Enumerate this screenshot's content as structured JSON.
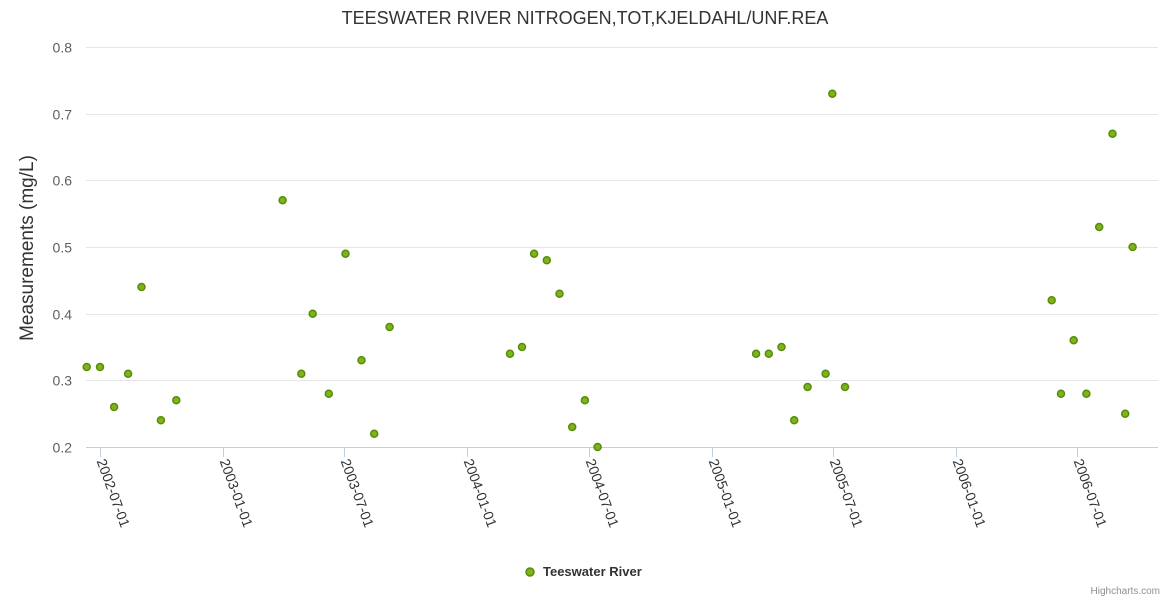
{
  "chart_data": {
    "type": "scatter",
    "title": "TEESWATER RIVER NITROGEN,TOT,KJELDAHL/UNF.REA",
    "xlabel": "",
    "ylabel": "Measurements (mg/L)",
    "ylim": [
      0.2,
      0.8
    ],
    "yticks": [
      "0.2",
      "0.3",
      "0.4",
      "0.5",
      "0.6",
      "0.7",
      "0.8"
    ],
    "xlim": [
      "2002-06-10",
      "2006-10-30"
    ],
    "xticks": [
      "2002-07-01",
      "2003-01-01",
      "2003-07-01",
      "2004-01-01",
      "2004-07-01",
      "2005-01-01",
      "2005-07-01",
      "2006-01-01",
      "2006-07-01"
    ],
    "grid": true,
    "legend_position": "bottom-center",
    "series": [
      {
        "name": "Teeswater River",
        "color": "#7cb518",
        "points": [
          {
            "x": "2002-06-11",
            "y": 0.32
          },
          {
            "x": "2002-07-01",
            "y": 0.32
          },
          {
            "x": "2002-07-22",
            "y": 0.26
          },
          {
            "x": "2002-08-12",
            "y": 0.31
          },
          {
            "x": "2002-09-01",
            "y": 0.44
          },
          {
            "x": "2002-09-30",
            "y": 0.24
          },
          {
            "x": "2002-10-23",
            "y": 0.27
          },
          {
            "x": "2003-03-31",
            "y": 0.57
          },
          {
            "x": "2003-04-28",
            "y": 0.31
          },
          {
            "x": "2003-05-15",
            "y": 0.4
          },
          {
            "x": "2003-06-08",
            "y": 0.28
          },
          {
            "x": "2003-07-03",
            "y": 0.49
          },
          {
            "x": "2003-07-27",
            "y": 0.33
          },
          {
            "x": "2003-08-15",
            "y": 0.22
          },
          {
            "x": "2003-09-07",
            "y": 0.38
          },
          {
            "x": "2004-03-05",
            "y": 0.34
          },
          {
            "x": "2004-03-23",
            "y": 0.35
          },
          {
            "x": "2004-04-10",
            "y": 0.49
          },
          {
            "x": "2004-04-29",
            "y": 0.48
          },
          {
            "x": "2004-05-18",
            "y": 0.43
          },
          {
            "x": "2004-06-06",
            "y": 0.23
          },
          {
            "x": "2004-06-25",
            "y": 0.27
          },
          {
            "x": "2004-07-14",
            "y": 0.2
          },
          {
            "x": "2005-03-08",
            "y": 0.34
          },
          {
            "x": "2005-03-27",
            "y": 0.34
          },
          {
            "x": "2005-04-15",
            "y": 0.35
          },
          {
            "x": "2005-05-04",
            "y": 0.24
          },
          {
            "x": "2005-05-24",
            "y": 0.29
          },
          {
            "x": "2005-06-20",
            "y": 0.31
          },
          {
            "x": "2005-06-30",
            "y": 0.73
          },
          {
            "x": "2005-07-19",
            "y": 0.29
          },
          {
            "x": "2006-05-24",
            "y": 0.42
          },
          {
            "x": "2006-06-07",
            "y": 0.28
          },
          {
            "x": "2006-06-26",
            "y": 0.36
          },
          {
            "x": "2006-07-15",
            "y": 0.28
          },
          {
            "x": "2006-08-03",
            "y": 0.53
          },
          {
            "x": "2006-08-23",
            "y": 0.67
          },
          {
            "x": "2006-09-11",
            "y": 0.25
          },
          {
            "x": "2006-09-22",
            "y": 0.5
          }
        ]
      }
    ]
  },
  "credits": "Highcharts.com"
}
